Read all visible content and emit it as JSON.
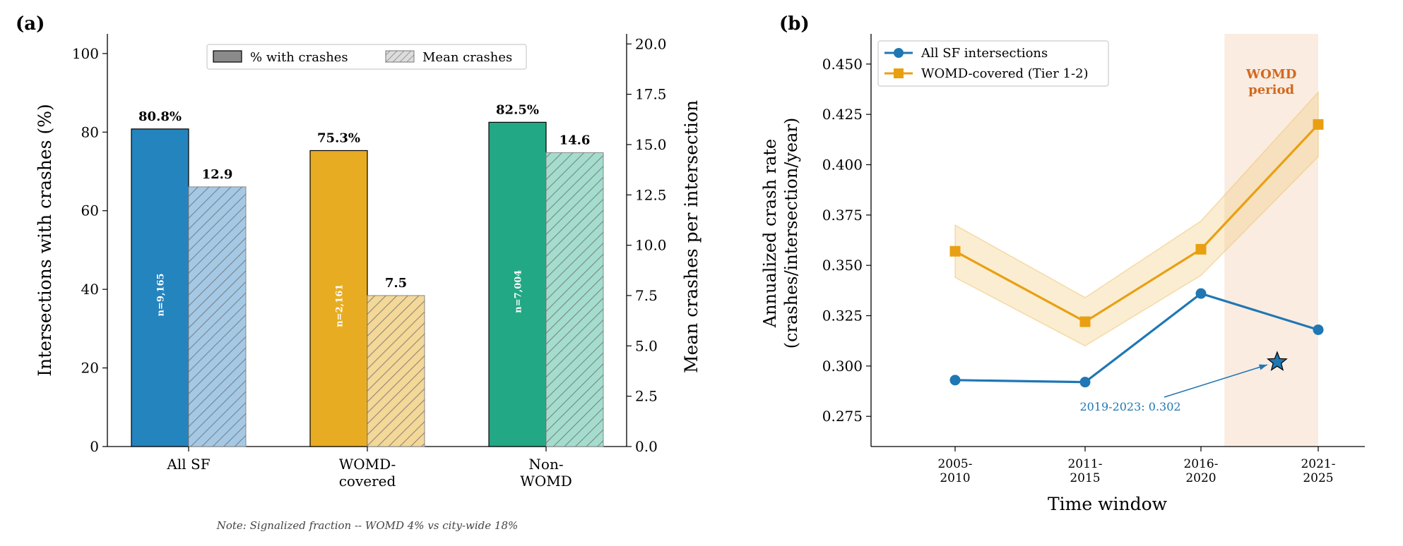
{
  "panel_a": {
    "label": "(a)",
    "note": "Note: Signalized fraction -- WOMD 4% vs city-wide 18%"
  },
  "panel_b": {
    "label": "(b)",
    "shade_label_line1": "WOMD",
    "shade_label_line2": "period",
    "annotation": "2019-2023: 0.302"
  },
  "chart_data": [
    {
      "type": "bar",
      "categories": [
        [
          "All SF"
        ],
        [
          "WOMD-",
          "covered"
        ],
        [
          "Non-",
          "WOMD"
        ]
      ],
      "series": [
        {
          "name": "% with crashes",
          "axis": "left",
          "values": [
            80.8,
            75.3,
            82.5
          ],
          "value_labels": [
            "80.8%",
            "75.3%",
            "82.5%"
          ],
          "colors": [
            "#2484be",
            "#e8ac22",
            "#22a884"
          ]
        },
        {
          "name": "Mean crashes",
          "axis": "right",
          "hatched": true,
          "values": [
            12.9,
            7.5,
            14.6
          ],
          "value_labels": [
            "12.9",
            "7.5",
            "14.6"
          ],
          "colors": [
            "#a5c9e5",
            "#f4d898",
            "#a4ddce"
          ]
        }
      ],
      "n_labels": [
        "n=9,165",
        "n=2,161",
        "n=7,004"
      ],
      "ylabel": "Intersections with crashes (%)",
      "ylabel_right": "Mean crashes per intersection",
      "ylim": [
        0,
        105
      ],
      "ylim_right": [
        0,
        20.5
      ],
      "yticks": [
        0,
        20,
        40,
        60,
        80,
        100
      ],
      "yticks_right": [
        "0.0",
        "2.5",
        "5.0",
        "7.5",
        "10.0",
        "12.5",
        "15.0",
        "17.5",
        "20.0"
      ],
      "legend": "top-center"
    },
    {
      "type": "line",
      "x": [
        [
          "2005-",
          "2010"
        ],
        [
          "2011-",
          "2015"
        ],
        [
          "2016-",
          "2020"
        ],
        [
          "2021-",
          "2025"
        ]
      ],
      "xlabel": "Time window",
      "ylabel_line1": "Annualized crash rate",
      "ylabel_line2": "(crashes/intersection/year)",
      "ylim": [
        0.26,
        0.465
      ],
      "yticks": [
        "0.275",
        "0.300",
        "0.325",
        "0.350",
        "0.375",
        "0.400",
        "0.425",
        "0.450"
      ],
      "series": [
        {
          "name": "All SF intersections",
          "color": "#1f77b4",
          "marker": "circle",
          "values": [
            0.293,
            0.292,
            0.336,
            0.318
          ]
        },
        {
          "name": "WOMD-covered (Tier 1-2)",
          "color": "#e8a012",
          "marker": "square",
          "values": [
            0.357,
            0.322,
            0.358,
            0.42
          ],
          "ci_low": [
            0.344,
            0.31,
            0.345,
            0.404
          ],
          "ci_high": [
            0.37,
            0.334,
            0.372,
            0.436
          ]
        }
      ],
      "highlight_point": {
        "x": 2.65,
        "value": 0.302,
        "color": "#1f77b4"
      },
      "shaded_region": {
        "x_start": 2.2,
        "x_end": 3.0
      },
      "legend": "top-left"
    }
  ]
}
